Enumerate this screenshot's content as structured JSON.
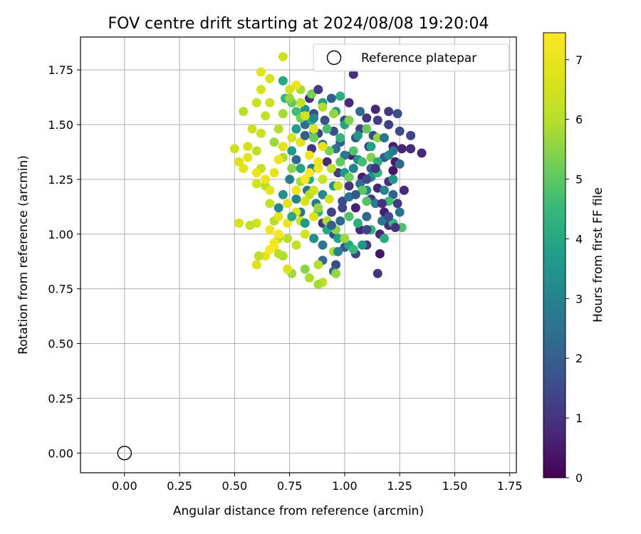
{
  "chart_data": {
    "type": "scatter",
    "title": "FOV centre drift starting at 2024/08/08 19:20:04",
    "xlabel": "Angular distance from reference (arcmin)",
    "ylabel": "Rotation from reference (arcmin)",
    "xlim": [
      -0.2,
      1.78
    ],
    "ylim": [
      -0.09,
      1.9
    ],
    "xticks": [
      0.0,
      0.25,
      0.5,
      0.75,
      1.0,
      1.25,
      1.5,
      1.75
    ],
    "xtick_labels": [
      "0.00",
      "0.25",
      "0.50",
      "0.75",
      "1.00",
      "1.25",
      "1.50",
      "1.75"
    ],
    "yticks": [
      0.0,
      0.25,
      0.5,
      0.75,
      1.0,
      1.25,
      1.5,
      1.75
    ],
    "ytick_labels": [
      "0.00",
      "0.25",
      "0.50",
      "0.75",
      "1.00",
      "1.25",
      "1.50",
      "1.75"
    ],
    "grid": true,
    "legend": {
      "position": "top-right",
      "entries": [
        "Reference platepar"
      ]
    },
    "reference_point": {
      "name": "Reference platepar",
      "x": 0.0,
      "y": 0.0
    },
    "colorbar": {
      "label": "Hours from first FF file",
      "range": [
        0,
        7.45
      ],
      "ticks": [
        0,
        1,
        2,
        3,
        4,
        5,
        6,
        7
      ],
      "tick_labels": [
        "0",
        "1",
        "2",
        "3",
        "4",
        "5",
        "6",
        "7"
      ],
      "colormap": "viridis"
    },
    "points": [
      [
        1.04,
        1.73,
        0.9
      ],
      [
        1.02,
        1.6,
        0.8
      ],
      [
        1.1,
        1.53,
        1.0
      ],
      [
        1.15,
        1.52,
        1.2
      ],
      [
        1.2,
        1.5,
        1.3
      ],
      [
        1.25,
        1.47,
        1.5
      ],
      [
        1.3,
        1.45,
        1.4
      ],
      [
        1.22,
        1.4,
        0.6
      ],
      [
        1.26,
        1.39,
        0.7
      ],
      [
        1.3,
        1.39,
        0.8
      ],
      [
        1.35,
        1.37,
        0.7
      ],
      [
        1.23,
        1.33,
        0.5
      ],
      [
        1.22,
        1.29,
        0.4
      ],
      [
        1.2,
        1.24,
        0.9
      ],
      [
        1.15,
        1.21,
        0.7
      ],
      [
        1.18,
        1.1,
        0.6
      ],
      [
        1.2,
        1.04,
        0.8
      ],
      [
        1.16,
        1.0,
        0.7
      ],
      [
        1.1,
        0.95,
        1.0
      ],
      [
        1.16,
        0.91,
        0.4
      ],
      [
        1.15,
        0.82,
        1.1
      ],
      [
        1.05,
        0.91,
        1.3
      ],
      [
        1.07,
        1.02,
        0.8
      ],
      [
        1.05,
        1.12,
        0.6
      ],
      [
        1.12,
        1.16,
        1.1
      ],
      [
        1.08,
        1.26,
        0.5
      ],
      [
        1.03,
        1.36,
        0.6
      ],
      [
        1.11,
        1.4,
        1.2
      ],
      [
        1.13,
        1.45,
        1.6
      ],
      [
        1.07,
        1.48,
        1.3
      ],
      [
        1.0,
        1.52,
        1.4
      ],
      [
        1.05,
        1.44,
        1.8
      ],
      [
        0.98,
        1.42,
        1.9
      ],
      [
        0.95,
        1.47,
        1.5
      ],
      [
        0.91,
        1.52,
        1.7
      ],
      [
        0.86,
        1.55,
        1.6
      ],
      [
        0.88,
        1.46,
        1.3
      ],
      [
        0.84,
        1.62,
        0.9
      ],
      [
        0.85,
        1.39,
        1.1
      ],
      [
        0.92,
        1.33,
        0.8
      ],
      [
        0.97,
        1.28,
        1.2
      ],
      [
        1.02,
        1.22,
        1.0
      ],
      [
        0.99,
        1.15,
        1.6
      ],
      [
        0.94,
        1.1,
        1.3
      ],
      [
        0.9,
        1.05,
        1.0
      ],
      [
        0.95,
        1.0,
        1.5
      ],
      [
        1.0,
        0.94,
        1.8
      ],
      [
        0.96,
        0.86,
        1.6
      ],
      [
        0.95,
        0.83,
        2.1
      ],
      [
        0.9,
        0.88,
        2.3
      ],
      [
        0.98,
        1.06,
        2.2
      ],
      [
        1.02,
        1.17,
        2.5
      ],
      [
        1.07,
        1.23,
        2.4
      ],
      [
        1.12,
        1.3,
        2.0
      ],
      [
        1.18,
        1.35,
        1.9
      ],
      [
        1.25,
        1.32,
        2.2
      ],
      [
        1.22,
        1.18,
        2.1
      ],
      [
        1.25,
        1.1,
        2.5
      ],
      [
        1.17,
        1.06,
        2.6
      ],
      [
        1.1,
        1.08,
        2.2
      ],
      [
        1.14,
        1.14,
        2.8
      ],
      [
        1.1,
        1.2,
        3.1
      ],
      [
        1.04,
        1.3,
        3.0
      ],
      [
        1.0,
        1.36,
        2.7
      ],
      [
        0.96,
        1.39,
        2.5
      ],
      [
        0.9,
        1.41,
        2.2
      ],
      [
        0.86,
        1.47,
        2.8
      ],
      [
        0.82,
        1.5,
        2.4
      ],
      [
        0.8,
        1.42,
        2.6
      ],
      [
        0.85,
        1.3,
        2.9
      ],
      [
        0.83,
        1.2,
        2.6
      ],
      [
        0.87,
        1.14,
        2.8
      ],
      [
        0.8,
        1.1,
        2.7
      ],
      [
        0.78,
        1.16,
        3.0
      ],
      [
        0.9,
        1.18,
        3.2
      ],
      [
        0.95,
        1.22,
        3.4
      ],
      [
        1.0,
        1.28,
        3.6
      ],
      [
        1.06,
        1.34,
        3.4
      ],
      [
        1.12,
        1.26,
        3.3
      ],
      [
        1.18,
        1.2,
        3.1
      ],
      [
        1.22,
        1.25,
        3.5
      ],
      [
        1.2,
        1.36,
        3.2
      ],
      [
        1.12,
        1.4,
        3.8
      ],
      [
        1.06,
        1.45,
        3.5
      ],
      [
        1.0,
        1.5,
        3.9
      ],
      [
        0.96,
        1.56,
        3.6
      ],
      [
        0.98,
        1.63,
        4.2
      ],
      [
        0.9,
        1.6,
        3.8
      ],
      [
        0.82,
        1.57,
        3.4
      ],
      [
        0.78,
        1.48,
        3.7
      ],
      [
        0.76,
        1.38,
        3.6
      ],
      [
        0.8,
        1.3,
        3.9
      ],
      [
        0.84,
        1.25,
        4.0
      ],
      [
        0.88,
        1.1,
        4.3
      ],
      [
        0.92,
        1.02,
        4.0
      ],
      [
        0.97,
        0.98,
        3.8
      ],
      [
        1.02,
        0.95,
        3.9
      ],
      [
        1.06,
        1.05,
        4.2
      ],
      [
        1.12,
        1.02,
        4.4
      ],
      [
        1.18,
        0.98,
        4.1
      ],
      [
        1.22,
        1.05,
        4.5
      ],
      [
        1.26,
        1.03,
        4.8
      ],
      [
        1.2,
        1.15,
        4.6
      ],
      [
        1.15,
        1.28,
        4.4
      ],
      [
        1.08,
        1.33,
        4.6
      ],
      [
        1.04,
        1.38,
        4.8
      ],
      [
        0.98,
        1.44,
        4.4
      ],
      [
        0.92,
        1.48,
        4.7
      ],
      [
        0.85,
        1.52,
        4.3
      ],
      [
        0.78,
        1.56,
        4.6
      ],
      [
        0.73,
        1.62,
        4.4
      ],
      [
        0.72,
        1.7,
        4.0
      ],
      [
        0.76,
        1.6,
        5.0
      ],
      [
        0.8,
        1.53,
        5.2
      ],
      [
        0.86,
        1.44,
        5.1
      ],
      [
        0.93,
        1.38,
        5.3
      ],
      [
        0.98,
        1.33,
        5.0
      ],
      [
        1.02,
        1.26,
        5.2
      ],
      [
        1.08,
        1.2,
        5.0
      ],
      [
        1.12,
        1.35,
        5.4
      ],
      [
        1.15,
        1.44,
        5.6
      ],
      [
        1.1,
        1.48,
        5.1
      ],
      [
        1.02,
        1.52,
        5.4
      ],
      [
        0.95,
        1.55,
        5.6
      ],
      [
        0.9,
        1.58,
        5.9
      ],
      [
        0.85,
        1.64,
        5.3
      ],
      [
        0.8,
        1.66,
        5.8
      ],
      [
        0.75,
        1.62,
        5.6
      ],
      [
        0.72,
        1.55,
        5.8
      ],
      [
        0.7,
        1.48,
        6.0
      ],
      [
        0.68,
        1.42,
        5.7
      ],
      [
        0.72,
        1.35,
        5.9
      ],
      [
        0.76,
        1.3,
        5.5
      ],
      [
        0.8,
        1.24,
        5.8
      ],
      [
        0.84,
        1.18,
        6.0
      ],
      [
        0.88,
        1.12,
        5.7
      ],
      [
        0.92,
        1.06,
        5.9
      ],
      [
        0.96,
        1.02,
        5.5
      ],
      [
        1.0,
        0.98,
        5.7
      ],
      [
        0.95,
        0.92,
        5.8
      ],
      [
        0.88,
        0.86,
        6.0
      ],
      [
        0.84,
        0.8,
        5.9
      ],
      [
        0.9,
        0.78,
        6.1
      ],
      [
        0.82,
        0.84,
        5.5
      ],
      [
        0.76,
        0.82,
        5.7
      ],
      [
        0.72,
        0.9,
        5.9
      ],
      [
        0.7,
        0.98,
        6.1
      ],
      [
        0.68,
        1.06,
        6.0
      ],
      [
        0.66,
        1.14,
        6.2
      ],
      [
        0.64,
        1.22,
        6.0
      ],
      [
        0.62,
        1.3,
        6.3
      ],
      [
        0.6,
        1.38,
        6.1
      ],
      [
        0.62,
        1.46,
        6.3
      ],
      [
        0.64,
        1.54,
        6.2
      ],
      [
        0.66,
        1.6,
        6.4
      ],
      [
        0.62,
        1.66,
        6.5
      ],
      [
        0.62,
        1.74,
        6.8
      ],
      [
        0.66,
        1.71,
        6.6
      ],
      [
        0.6,
        1.6,
        6.3
      ],
      [
        0.58,
        1.48,
        6.4
      ],
      [
        0.56,
        1.4,
        6.6
      ],
      [
        0.54,
        1.56,
        6.0
      ],
      [
        0.5,
        1.39,
        6.4
      ],
      [
        0.52,
        1.33,
        6.7
      ],
      [
        0.54,
        1.3,
        6.8
      ],
      [
        0.56,
        1.35,
        6.9
      ],
      [
        0.6,
        1.28,
        7.0
      ],
      [
        0.64,
        1.25,
        7.1
      ],
      [
        0.68,
        1.28,
        6.9
      ],
      [
        0.7,
        1.34,
        7.0
      ],
      [
        0.72,
        1.4,
        6.8
      ],
      [
        0.76,
        1.44,
        6.6
      ],
      [
        0.8,
        1.42,
        6.9
      ],
      [
        0.84,
        1.36,
        7.1
      ],
      [
        0.88,
        1.3,
        7.2
      ],
      [
        0.82,
        1.25,
        7.3
      ],
      [
        0.78,
        1.2,
        7.0
      ],
      [
        0.74,
        1.14,
        6.8
      ],
      [
        0.7,
        1.08,
        6.9
      ],
      [
        0.66,
        1.02,
        7.1
      ],
      [
        0.68,
        0.96,
        7.2
      ],
      [
        0.64,
        0.9,
        6.9
      ],
      [
        0.6,
        0.86,
        6.7
      ],
      [
        0.66,
        0.93,
        7.4
      ],
      [
        0.7,
        1.0,
        7.3
      ],
      [
        0.74,
        1.05,
        7.0
      ],
      [
        0.78,
        1.1,
        6.8
      ],
      [
        0.82,
        1.15,
        6.6
      ],
      [
        0.86,
        1.2,
        6.5
      ],
      [
        0.9,
        1.25,
        6.3
      ],
      [
        0.94,
        1.3,
        6.2
      ],
      [
        0.97,
        1.22,
        6.4
      ],
      [
        0.93,
        1.16,
        6.6
      ],
      [
        0.86,
        1.08,
        6.7
      ],
      [
        0.82,
        1.0,
        6.5
      ],
      [
        0.78,
        0.95,
        6.2
      ],
      [
        0.74,
        0.98,
        6.0
      ],
      [
        0.8,
        1.06,
        6.3
      ],
      [
        0.84,
        1.28,
        7.4
      ],
      [
        0.88,
        1.33,
        7.2
      ],
      [
        0.9,
        1.4,
        6.9
      ],
      [
        0.86,
        1.48,
        6.7
      ],
      [
        0.82,
        1.54,
        6.5
      ],
      [
        0.8,
        1.6,
        6.2
      ],
      [
        0.78,
        1.68,
        7.0
      ],
      [
        0.75,
        1.66,
        6.6
      ],
      [
        0.72,
        1.81,
        6.4
      ],
      [
        0.6,
        1.05,
        6.5
      ],
      [
        0.57,
        1.04,
        6.2
      ],
      [
        0.52,
        1.05,
        6.6
      ],
      [
        0.66,
        1.2,
        6.9
      ],
      [
        0.6,
        1.23,
        6.5
      ],
      [
        0.61,
        0.9,
        6.1
      ],
      [
        0.68,
        0.94,
        7.3
      ],
      [
        0.74,
        0.84,
        6.7
      ],
      [
        0.7,
        0.91,
        6.0
      ],
      [
        0.88,
        0.77,
        5.8
      ],
      [
        0.96,
        0.82,
        5.6
      ],
      [
        1.04,
        0.93,
        4.5
      ],
      [
        1.08,
        0.95,
        3.5
      ],
      [
        0.97,
        0.92,
        3.0
      ],
      [
        1.02,
        1.08,
        4.8
      ],
      [
        1.1,
        1.15,
        4.9
      ],
      [
        1.15,
        1.33,
        4.2
      ],
      [
        1.22,
        1.38,
        2.8
      ],
      [
        1.18,
        1.44,
        2.6
      ],
      [
        1.24,
        1.55,
        1.6
      ],
      [
        1.2,
        1.56,
        1.1
      ],
      [
        1.14,
        1.57,
        0.7
      ],
      [
        1.07,
        1.56,
        2.2
      ],
      [
        0.94,
        1.62,
        2.0
      ],
      [
        0.88,
        1.66,
        1.2
      ],
      [
        0.86,
        1.53,
        3.1
      ],
      [
        0.82,
        1.45,
        2.0
      ],
      [
        0.78,
        1.34,
        2.3
      ],
      [
        0.75,
        1.25,
        2.9
      ],
      [
        0.72,
        1.18,
        3.4
      ],
      [
        0.7,
        1.12,
        3.1
      ],
      [
        0.76,
        1.08,
        4.0
      ],
      [
        0.82,
        1.05,
        3.6
      ],
      [
        0.86,
        0.98,
        3.3
      ],
      [
        0.9,
        0.95,
        2.6
      ],
      [
        0.94,
        1.04,
        2.0
      ],
      [
        0.99,
        1.12,
        1.4
      ],
      [
        1.05,
        1.18,
        1.8
      ],
      [
        1.1,
        1.25,
        1.5
      ],
      [
        1.14,
        1.3,
        1.0
      ],
      [
        1.17,
        1.14,
        0.9
      ],
      [
        1.2,
        1.08,
        1.6
      ],
      [
        1.24,
        1.14,
        1.2
      ],
      [
        1.27,
        1.2,
        0.8
      ],
      [
        1.23,
        1.03,
        1.0
      ],
      [
        1.1,
        1.02,
        1.4
      ]
    ]
  }
}
